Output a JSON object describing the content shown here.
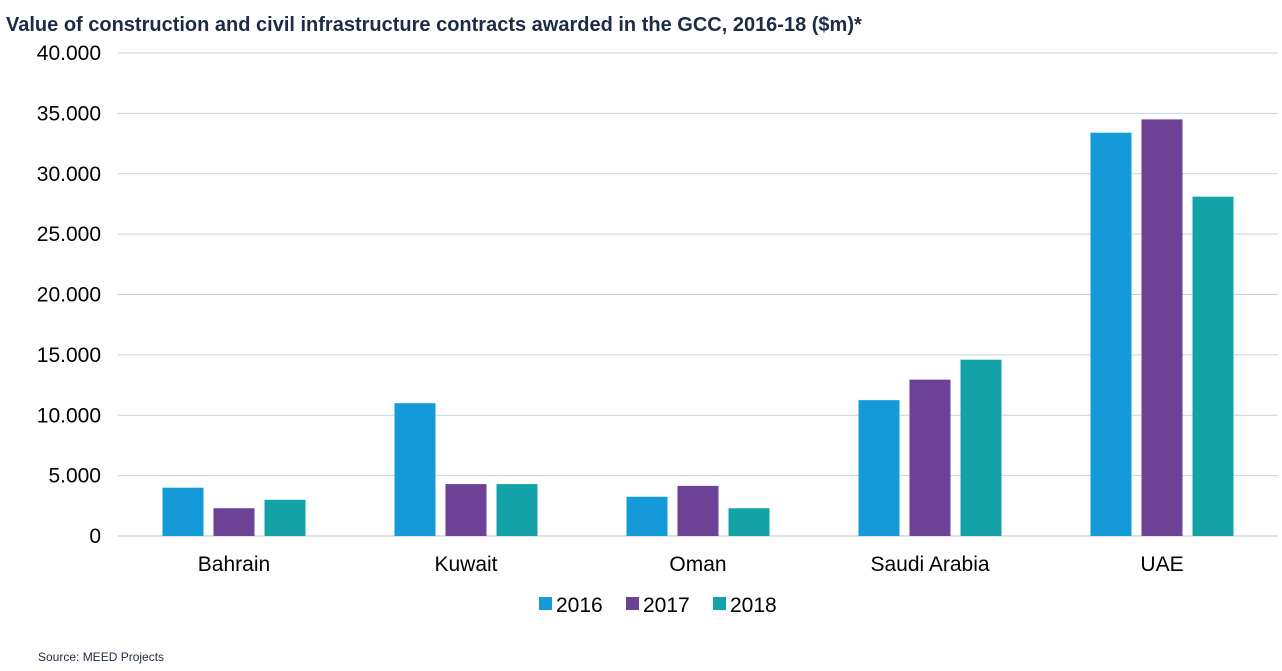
{
  "chart_data": {
    "type": "bar",
    "title": "Value of construction and civil infrastructure contracts awarded in the GCC, 2016-18 ($m)*",
    "xlabel": "",
    "ylabel": "",
    "categories": [
      "Bahrain",
      "Kuwait",
      "Oman",
      "Saudi Arabia",
      "UAE"
    ],
    "series": [
      {
        "name": "2016",
        "color": "#149ad8",
        "values": [
          4000,
          11000,
          3250,
          11250,
          33400
        ]
      },
      {
        "name": "2017",
        "color": "#6c4196",
        "values": [
          2300,
          4300,
          4150,
          12950,
          34500
        ]
      },
      {
        "name": "2018",
        "color": "#14a2a9",
        "values": [
          3000,
          4300,
          2300,
          14600,
          28100
        ]
      }
    ],
    "ylim": [
      0,
      40000
    ],
    "yticks": [
      0,
      5000,
      10000,
      15000,
      20000,
      25000,
      30000,
      35000,
      40000
    ],
    "ytick_labels": [
      "0",
      "5.000",
      "10.000",
      "15.000",
      "20.000",
      "25.000",
      "30.000",
      "35.000",
      "40.000"
    ],
    "grid": true,
    "legend_position": "bottom",
    "source": "Source: MEED Projects"
  }
}
